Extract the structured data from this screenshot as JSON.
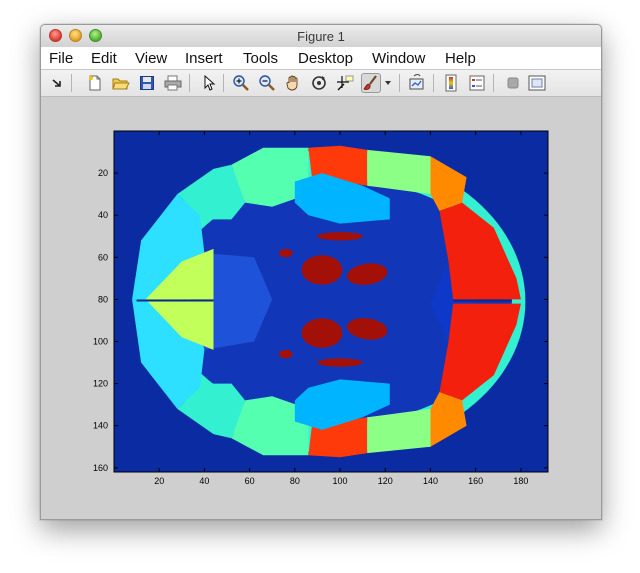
{
  "window": {
    "title": "Figure 1"
  },
  "menubar": {
    "items": [
      "File",
      "Edit",
      "View",
      "Insert",
      "Tools",
      "Desktop",
      "Window",
      "Help"
    ]
  },
  "toolbar": {
    "buttons": [
      "dock-icon",
      "new-figure-icon",
      "open-file-icon",
      "save-icon",
      "print-icon",
      "pointer-icon",
      "zoom-in-icon",
      "zoom-out-icon",
      "pan-icon",
      "rotate-3d-icon",
      "data-cursor-icon",
      "brush-icon",
      "brush-dropdown-icon",
      "link-plot-icon",
      "insert-colorbar-icon",
      "insert-legend-icon",
      "hide-plot-tools-icon",
      "show-plot-tools-icon"
    ]
  },
  "chart_data": {
    "type": "heatmap",
    "title": "",
    "xlabel": "",
    "ylabel": "",
    "xlim": [
      0,
      192
    ],
    "ylim": [
      0,
      162
    ],
    "x_ticks": [
      "20",
      "40",
      "60",
      "80",
      "100",
      "120",
      "140",
      "160",
      "180"
    ],
    "y_ticks": [
      "20",
      "40",
      "60",
      "80",
      "100",
      "120",
      "140",
      "160"
    ],
    "colormap": "jet",
    "background_color": "#0b2ba3",
    "colors": {
      "axes_bg": "#0b2ba3",
      "inner_blue": "#1236b8",
      "light_blue": "#1e53d9",
      "deep_blue_right": "#0e38c8",
      "cyan": "#2de0ff",
      "aqua": "#33f0d0",
      "seafoam": "#55ffb0",
      "light_green": "#8cff86",
      "yellow_green": "#c3ff5a",
      "orange": "#ff8a00",
      "red_orange": "#ff3a0a",
      "red": "#f2200c",
      "dark_red": "#a31008",
      "sky": "#00b4ff"
    }
  }
}
